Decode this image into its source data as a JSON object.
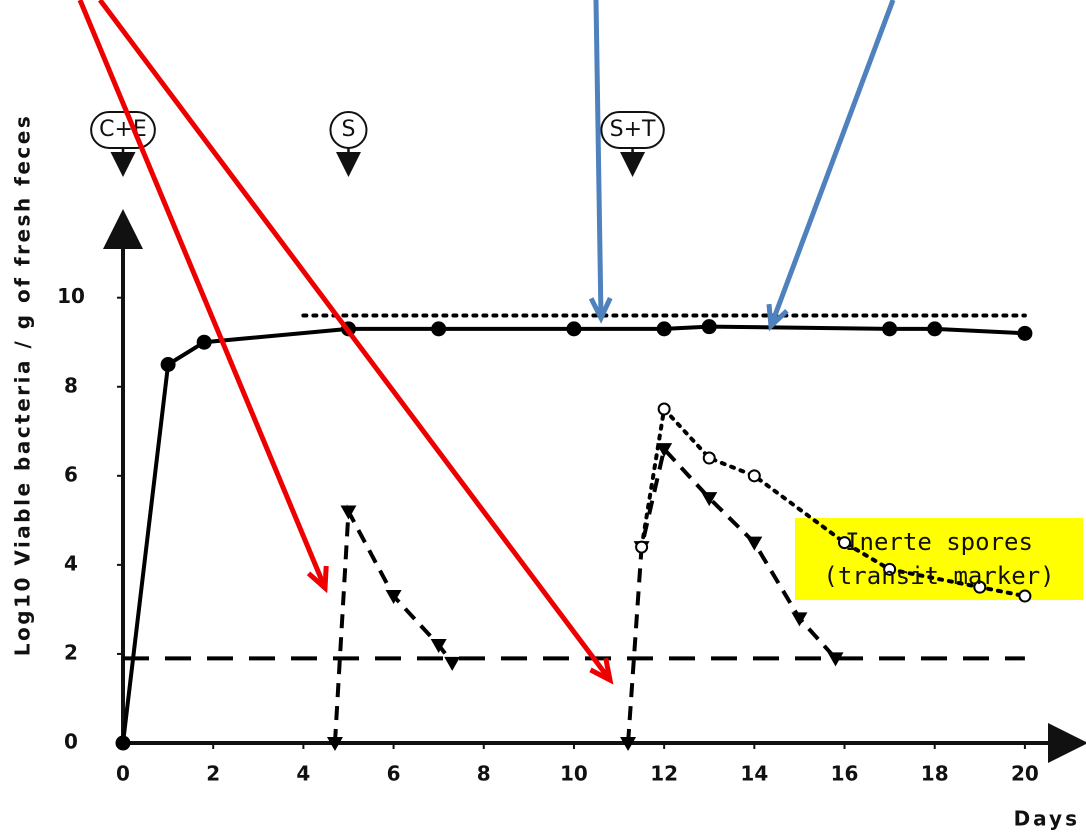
{
  "chart_data": {
    "type": "line",
    "xlabel": "Days",
    "ylabel": "Log10 Viable bacteria / g of fresh feces",
    "xlim": [
      0,
      21
    ],
    "ylim": [
      0,
      11.7
    ],
    "xticks": [
      0,
      2,
      4,
      6,
      8,
      10,
      12,
      14,
      16,
      18,
      20
    ],
    "yticks": [
      0,
      2,
      4,
      6,
      8,
      10
    ],
    "series": [
      {
        "color": "#000000",
        "style": "solid",
        "marker": "dot",
        "x": [
          0,
          1,
          1.8,
          5,
          7,
          10,
          12,
          13,
          17,
          18,
          20
        ],
        "values": [
          0,
          8.5,
          9.0,
          9.3,
          9.3,
          9.3,
          9.3,
          9.35,
          9.3,
          9.3,
          9.2
        ]
      },
      {
        "color": "#000000",
        "style": "dotted",
        "marker": "none",
        "x": [
          4,
          20
        ],
        "values": [
          9.6,
          9.6
        ]
      },
      {
        "color": "#000000",
        "style": "dashed",
        "marker": "triangle",
        "x": [
          4.7,
          5,
          6,
          7,
          7.3
        ],
        "values": [
          0,
          5.2,
          3.3,
          2.2,
          1.8
        ]
      },
      {
        "color": "#000000",
        "style": "dashed",
        "marker": "triangle",
        "x": [
          11.2,
          11.5,
          12,
          13,
          14,
          15,
          15.8
        ],
        "values": [
          0,
          4.4,
          6.6,
          5.5,
          4.5,
          2.8,
          1.9
        ]
      },
      {
        "color": "#000000",
        "style": "dotted",
        "marker": "circle",
        "x": [
          11.5,
          12,
          13,
          14,
          16,
          17,
          19,
          20
        ],
        "values": [
          4.4,
          7.5,
          6.4,
          6.0,
          4.5,
          3.9,
          3.5,
          3.3
        ]
      },
      {
        "color": "#000000",
        "style": "longdash",
        "marker": "none",
        "x": [
          0,
          20
        ],
        "values": [
          1.9,
          1.9
        ]
      }
    ],
    "annotations": [
      {
        "label": "C+E",
        "x": 0
      },
      {
        "label": "S",
        "x": 5
      },
      {
        "label": "S+T",
        "x": 11.3
      }
    ],
    "note": [
      "Inerte spores",
      "(transit marker)"
    ]
  }
}
